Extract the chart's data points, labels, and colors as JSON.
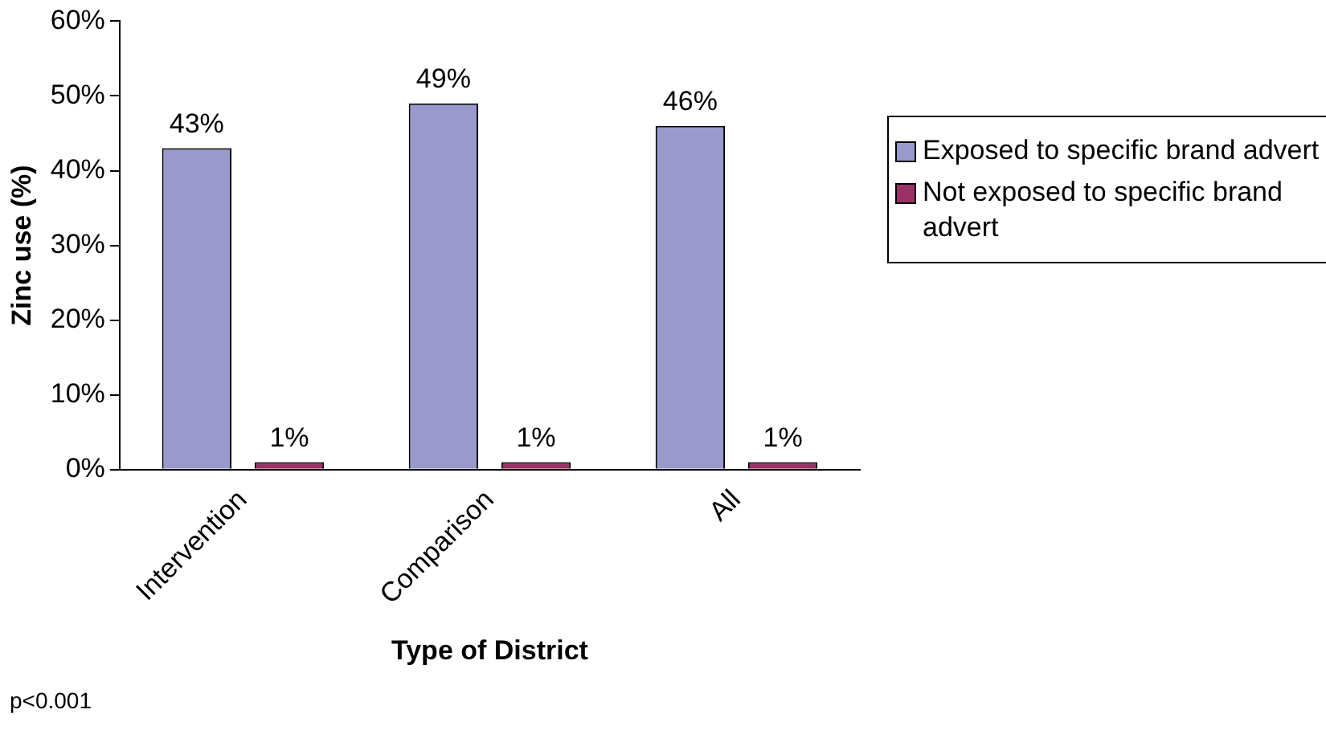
{
  "chart_data": {
    "type": "bar",
    "xlabel": "Type of District",
    "ylabel": "Zinc use (%)",
    "categories": [
      "Intervention",
      "Comparison",
      "All"
    ],
    "series": [
      {
        "name": "Exposed to specific brand advert",
        "color": "#9999cc",
        "values": [
          43,
          49,
          46
        ],
        "value_labels": [
          "43%",
          "49%",
          "46%"
        ]
      },
      {
        "name": "Not exposed to specific brand advert",
        "color": "#993366",
        "values": [
          1,
          1,
          1
        ],
        "value_labels": [
          "1%",
          "1%",
          "1%"
        ]
      }
    ],
    "ylim": [
      0,
      60
    ],
    "yticks": [
      {
        "value": 0,
        "label": "0%"
      },
      {
        "value": 10,
        "label": "10%"
      },
      {
        "value": 20,
        "label": "20%"
      },
      {
        "value": 30,
        "label": "30%"
      },
      {
        "value": 40,
        "label": "40%"
      },
      {
        "value": 50,
        "label": "50%"
      },
      {
        "value": 60,
        "label": "60%"
      }
    ],
    "grid": false,
    "legend": "right",
    "annotations": [
      "p<0.001"
    ]
  }
}
